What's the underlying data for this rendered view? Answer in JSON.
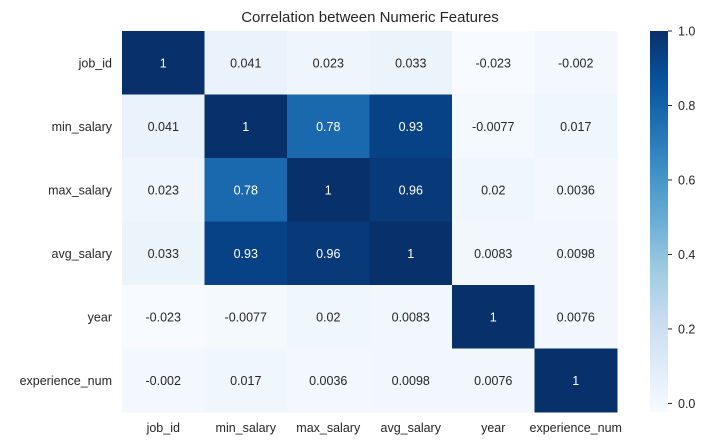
{
  "chart_data": {
    "type": "heatmap",
    "title": "Correlation between Numeric Features",
    "rows": [
      "job_id",
      "min_salary",
      "max_salary",
      "avg_salary",
      "year",
      "experience_num"
    ],
    "columns": [
      "job_id",
      "min_salary",
      "max_salary",
      "avg_salary",
      "year",
      "experience_num"
    ],
    "values": [
      [
        1,
        0.041,
        0.023,
        0.033,
        -0.023,
        -0.002
      ],
      [
        0.041,
        1,
        0.78,
        0.93,
        -0.0077,
        0.017
      ],
      [
        0.023,
        0.78,
        1,
        0.96,
        0.02,
        0.0036
      ],
      [
        0.033,
        0.93,
        0.96,
        1,
        0.0083,
        0.0098
      ],
      [
        -0.023,
        -0.0077,
        0.02,
        0.0083,
        1,
        0.0076
      ],
      [
        -0.002,
        0.017,
        0.0036,
        0.0098,
        0.0076,
        1
      ]
    ],
    "labels": [
      [
        "1",
        "0.041",
        "0.023",
        "0.033",
        "-0.023",
        "-0.002"
      ],
      [
        "0.041",
        "1",
        "0.78",
        "0.93",
        "-0.0077",
        "0.017"
      ],
      [
        "0.023",
        "0.78",
        "1",
        "0.96",
        "0.02",
        "0.0036"
      ],
      [
        "0.033",
        "0.93",
        "0.96",
        "1",
        "0.0083",
        "0.0098"
      ],
      [
        "-0.023",
        "-0.0077",
        "0.02",
        "0.0083",
        "1",
        "0.0076"
      ],
      [
        "-0.002",
        "0.017",
        "0.0036",
        "0.0098",
        "0.0076",
        "1"
      ]
    ],
    "colormap": "Blues",
    "colorbar": {
      "vmin": -0.023,
      "vmax": 1,
      "ticks": [
        0.0,
        0.2,
        0.4,
        0.6,
        0.8,
        1.0
      ],
      "tick_labels": [
        "0.0",
        "0.2",
        "0.4",
        "0.6",
        "0.8",
        "1.0"
      ]
    },
    "grid": false
  }
}
